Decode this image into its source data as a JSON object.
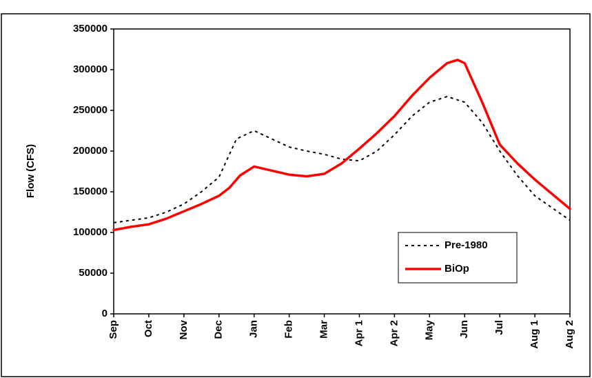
{
  "chart_data": {
    "type": "line",
    "y_label": "Flow (CFS)",
    "xlim": [
      0,
      13
    ],
    "xticks": [
      {
        "value": 0,
        "label": "Sep"
      },
      {
        "value": 1,
        "label": "Oct"
      },
      {
        "value": 2,
        "label": "Nov"
      },
      {
        "value": 3,
        "label": "Dec"
      },
      {
        "value": 4,
        "label": "Jan"
      },
      {
        "value": 5,
        "label": "Feb"
      },
      {
        "value": 6,
        "label": "Mar"
      },
      {
        "value": 7,
        "label": "Apr 1"
      },
      {
        "value": 8,
        "label": "Apr 2"
      },
      {
        "value": 9,
        "label": "May"
      },
      {
        "value": 10,
        "label": "Jun"
      },
      {
        "value": 11,
        "label": "Jul"
      },
      {
        "value": 12,
        "label": "Aug 1"
      },
      {
        "value": 13,
        "label": "Aug 2"
      }
    ],
    "ylim": [
      0,
      350000
    ],
    "yticks": [
      0,
      50000,
      100000,
      150000,
      200000,
      250000,
      300000,
      350000
    ],
    "series": [
      {
        "name": "Pre-1980",
        "color": "#000000",
        "dashed": true,
        "x": [
          0,
          0.5,
          1,
          1.5,
          2,
          2.5,
          3,
          3.5,
          4,
          4.5,
          5,
          5.5,
          6,
          6.5,
          7,
          7.5,
          8,
          8.5,
          9,
          9.5,
          10,
          10.5,
          11,
          11.5,
          12,
          12.5,
          13
        ],
        "values": [
          112000,
          115000,
          118000,
          125000,
          135000,
          150000,
          168000,
          215000,
          225000,
          215000,
          205000,
          200000,
          196000,
          190000,
          188000,
          200000,
          220000,
          243000,
          260000,
          267000,
          260000,
          235000,
          200000,
          170000,
          145000,
          130000,
          115000
        ]
      },
      {
        "name": "BiOp",
        "color": "#ff0000",
        "dashed": false,
        "x": [
          0,
          0.5,
          1,
          1.5,
          2,
          2.5,
          3,
          3.3,
          3.6,
          4,
          4.5,
          5,
          5.5,
          6,
          6.5,
          7,
          7.5,
          8,
          8.5,
          9,
          9.5,
          9.8,
          10,
          10.5,
          11,
          11.5,
          12,
          12.5,
          13
        ],
        "values": [
          103000,
          107000,
          110000,
          117000,
          126000,
          135000,
          145000,
          155000,
          170000,
          181000,
          176000,
          171000,
          169000,
          172000,
          185000,
          203000,
          222000,
          243000,
          268000,
          290000,
          308000,
          312000,
          308000,
          260000,
          208000,
          185000,
          165000,
          147000,
          129000
        ]
      }
    ]
  }
}
